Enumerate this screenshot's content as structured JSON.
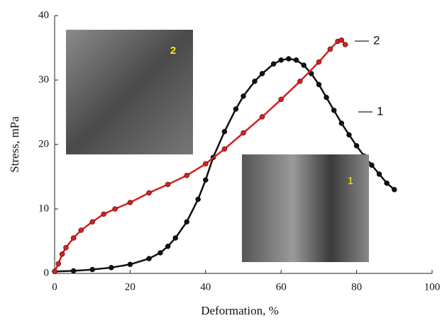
{
  "chart_data": {
    "type": "scatter",
    "x_label": "Deformation, %",
    "y_label": "Stress, mPa",
    "xlim": [
      0,
      100
    ],
    "xticks": [
      0,
      20,
      40,
      60,
      80,
      100
    ],
    "ylim": [
      0,
      40
    ],
    "yticks": [
      0,
      10,
      20,
      30,
      40
    ],
    "series": [
      {
        "name": "1",
        "color": "#111111",
        "x": [
          0,
          5,
          10,
          15,
          20,
          25,
          28,
          30,
          32,
          35,
          38,
          40,
          42,
          45,
          48,
          50,
          53,
          55,
          58,
          60,
          62,
          64,
          66,
          68,
          70,
          72,
          74,
          76,
          78,
          80,
          82,
          84,
          86,
          88,
          90
        ],
        "values": [
          0.3,
          0.4,
          0.6,
          0.9,
          1.4,
          2.3,
          3.2,
          4.2,
          5.5,
          8,
          11.5,
          14.5,
          18,
          22,
          25.5,
          27.5,
          29.8,
          31,
          32.5,
          33.1,
          33.3,
          33.1,
          32.3,
          31,
          29.3,
          27.3,
          25.3,
          23.3,
          21.5,
          19.8,
          18.2,
          16.8,
          15.4,
          14,
          13
        ]
      },
      {
        "name": "2",
        "color": "#d42020",
        "x": [
          0,
          1,
          2,
          3,
          5,
          7,
          10,
          13,
          16,
          20,
          25,
          30,
          35,
          40,
          45,
          50,
          55,
          60,
          65,
          70,
          73,
          75,
          76,
          77
        ],
        "values": [
          0.3,
          1.5,
          3,
          4,
          5.5,
          6.7,
          8,
          9.2,
          10,
          11,
          12.5,
          13.8,
          15.2,
          17,
          19.3,
          21.8,
          24.3,
          27,
          29.8,
          32.8,
          34.8,
          36,
          36.2,
          35.5
        ]
      }
    ],
    "insets": [
      {
        "label": "2"
      },
      {
        "label": "1"
      }
    ]
  }
}
